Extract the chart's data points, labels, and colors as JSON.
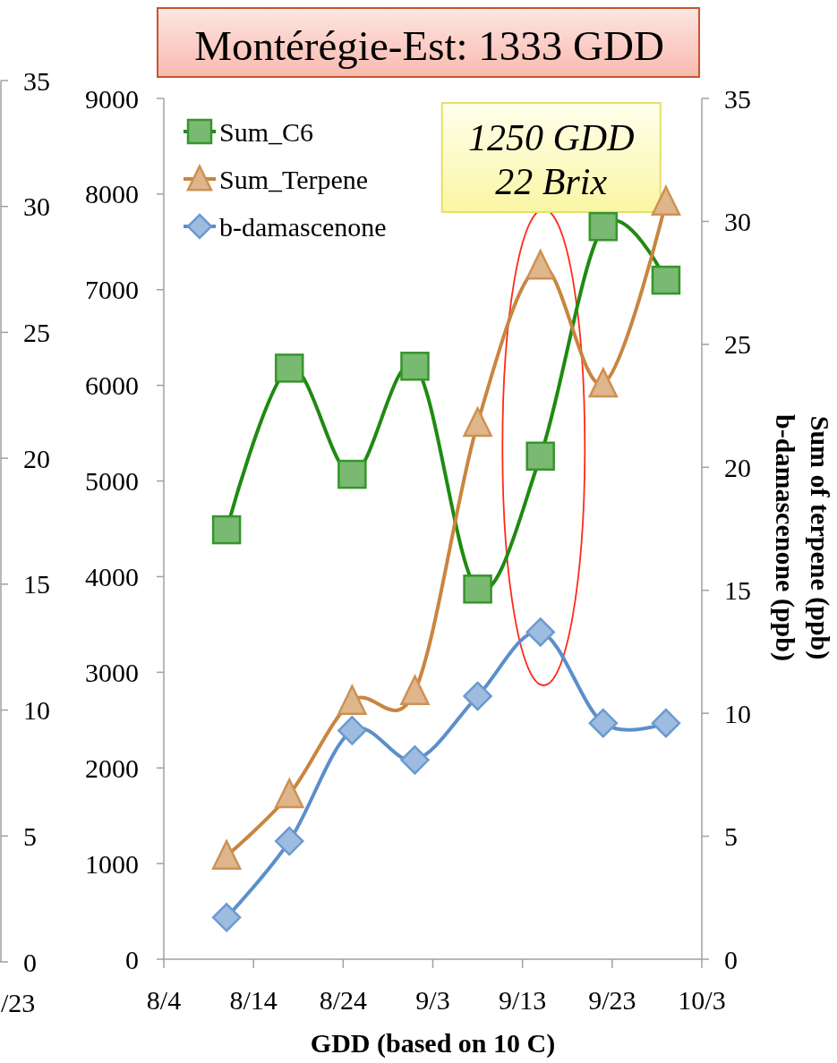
{
  "chart_data": [
    {
      "type": "line",
      "categories": [
        "/23"
      ],
      "y2lim": [
        0,
        35
      ],
      "y2ticks": [
        0,
        5,
        10,
        15,
        20,
        25,
        30,
        35
      ]
    },
    {
      "type": "line",
      "title": "Montérégie-Est: 1333 GDD",
      "xlabel": "GDD (based on 10 C)",
      "y2label": "Sum of terpene (ppb)\nb-damascenone (ppb)",
      "annotations": [
        "1250 GDD\n22 Brix"
      ],
      "x": [
        "--08-11",
        "--08-18",
        "--08-25",
        "--09-01",
        "--09-08",
        "--09-15",
        "--09-22",
        "--09-29"
      ],
      "series": [
        {
          "name": "Sum_C6",
          "color": "#1f8a12",
          "marker": "square",
          "values": [
            4490,
            6180,
            5070,
            6200,
            3870,
            5260,
            7660,
            7100
          ]
        },
        {
          "name": "Sum_Terpene",
          "color": "#c9853f",
          "marker": "triangle",
          "axis": "y2",
          "values": [
            4.2,
            6.7,
            10.5,
            10.9,
            21.8,
            28.2,
            23.4,
            30.8
          ]
        },
        {
          "name": "b-damascenone",
          "color": "#5b8fcb",
          "marker": "diamond",
          "axis": "y2",
          "values": [
            1.7,
            4.8,
            9.3,
            8.1,
            10.7,
            13.3,
            9.6,
            9.6
          ]
        }
      ],
      "xlim": [
        "--08-04",
        "--10-03"
      ],
      "xticks": [
        {
          "value": "--08-04",
          "label": "8/4"
        },
        {
          "value": "--08-14",
          "label": "8/14"
        },
        {
          "value": "--08-24",
          "label": "8/24"
        },
        {
          "value": "--09-03",
          "label": "9/3"
        },
        {
          "value": "--09-13",
          "label": "9/13"
        },
        {
          "value": "--09-23",
          "label": "9/23"
        },
        {
          "value": "--10-03",
          "label": "10/3"
        }
      ],
      "ylim": [
        0,
        9000
      ],
      "yticks": [
        0,
        1000,
        2000,
        3000,
        4000,
        5000,
        6000,
        7000,
        8000,
        9000
      ],
      "y2lim": [
        0,
        35
      ],
      "y2ticks": [
        0,
        5,
        10,
        15,
        20,
        25,
        30,
        35
      ],
      "legend": "top left"
    }
  ]
}
